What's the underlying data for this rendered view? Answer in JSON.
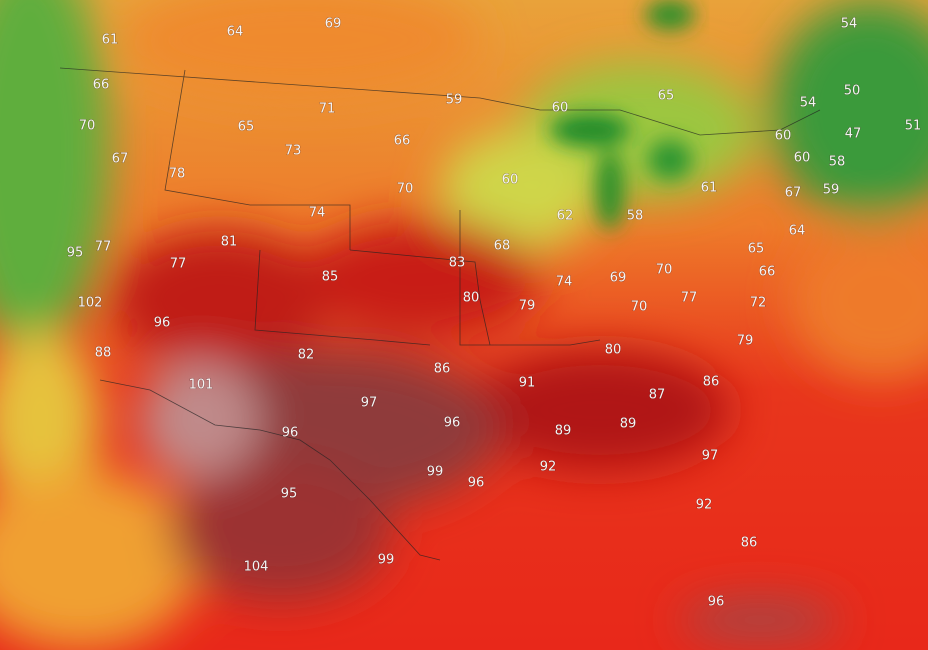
{
  "map": {
    "labels": [
      61,
      64,
      69,
      54,
      66,
      59,
      60,
      65,
      54,
      50,
      70,
      71,
      65,
      66,
      60,
      47,
      51,
      67,
      73,
      60,
      58,
      78,
      70,
      60,
      61,
      67,
      59,
      74,
      62,
      58,
      64,
      95,
      77,
      81,
      68,
      65,
      77,
      83,
      74,
      69,
      70,
      66,
      85,
      80,
      79,
      70,
      77,
      72,
      102,
      96,
      80,
      79,
      88,
      82,
      86,
      91,
      86,
      101,
      97,
      87,
      96,
      96,
      89,
      89,
      99,
      97,
      92,
      96,
      95,
      92,
      86,
      104,
      99,
      96
    ]
  }
}
